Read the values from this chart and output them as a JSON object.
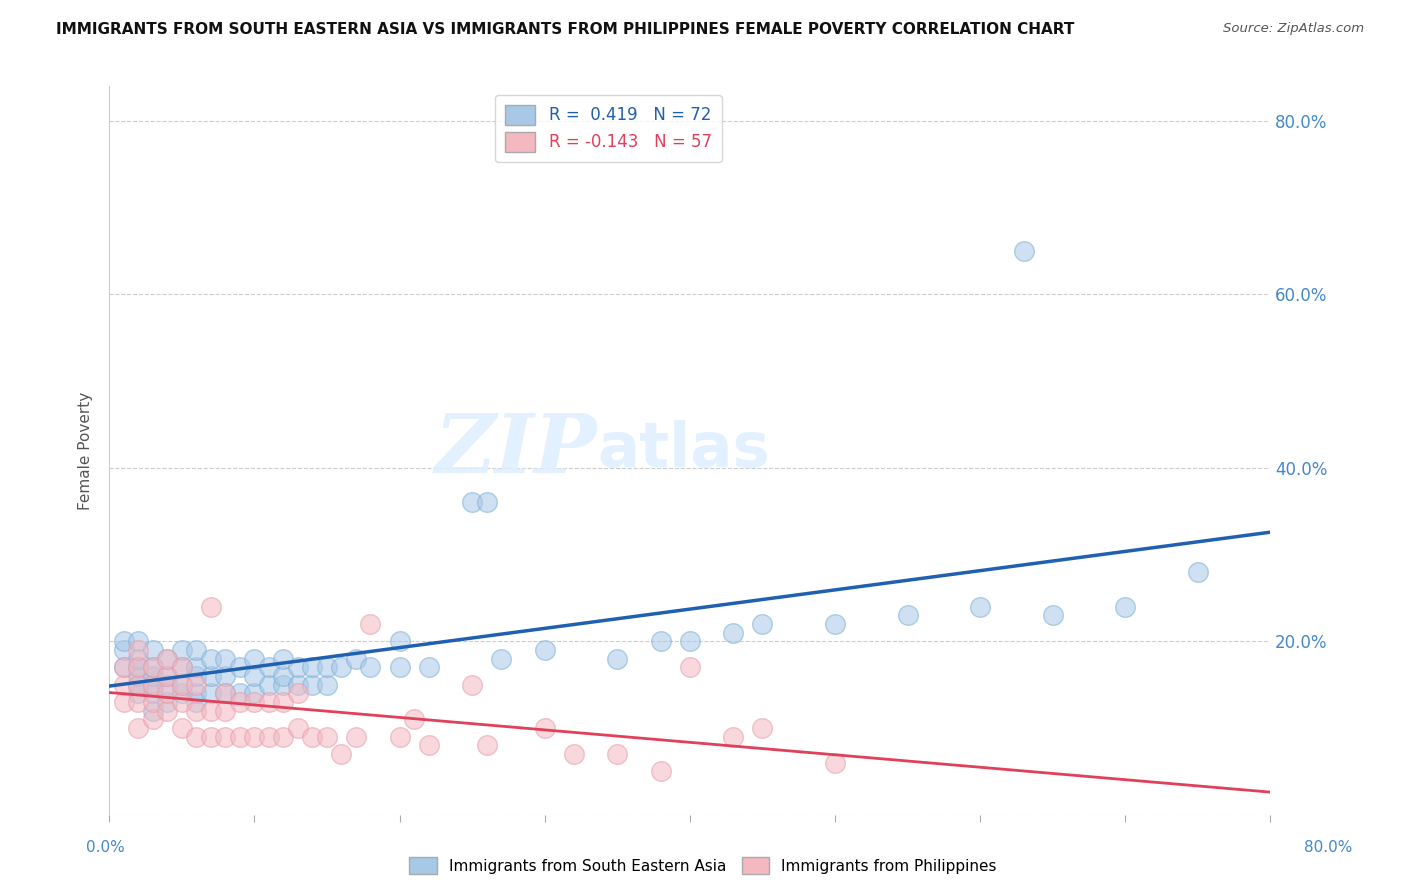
{
  "title": "IMMIGRANTS FROM SOUTH EASTERN ASIA VS IMMIGRANTS FROM PHILIPPINES FEMALE POVERTY CORRELATION CHART",
  "source": "Source: ZipAtlas.com",
  "ylabel": "Female Poverty",
  "r1": 0.419,
  "n1": 72,
  "r2": -0.143,
  "n2": 57,
  "color_sea": "#a8c8e8",
  "color_phil": "#f4b8c0",
  "color_sea_edge": "#7bafd4",
  "color_phil_edge": "#e89aaa",
  "color_sea_line": "#2060b0",
  "color_phil_line": "#e0405a",
  "legend_sea": "Immigrants from South Eastern Asia",
  "legend_phil": "Immigrants from Philippines",
  "watermark_zip": "ZIP",
  "watermark_atlas": "atlas",
  "xlim": [
    0.0,
    0.8
  ],
  "ylim": [
    0.0,
    0.84
  ],
  "yticks": [
    0.0,
    0.2,
    0.4,
    0.6,
    0.8
  ],
  "ytick_labels": [
    "",
    "20.0%",
    "40.0%",
    "60.0%",
    "80.0%"
  ],
  "sea_x": [
    0.01,
    0.01,
    0.01,
    0.02,
    0.02,
    0.02,
    0.02,
    0.02,
    0.02,
    0.03,
    0.03,
    0.03,
    0.03,
    0.03,
    0.03,
    0.04,
    0.04,
    0.04,
    0.04,
    0.05,
    0.05,
    0.05,
    0.05,
    0.06,
    0.06,
    0.06,
    0.06,
    0.06,
    0.07,
    0.07,
    0.07,
    0.08,
    0.08,
    0.08,
    0.09,
    0.09,
    0.1,
    0.1,
    0.1,
    0.11,
    0.11,
    0.12,
    0.12,
    0.12,
    0.13,
    0.13,
    0.14,
    0.14,
    0.15,
    0.15,
    0.16,
    0.17,
    0.18,
    0.2,
    0.2,
    0.22,
    0.25,
    0.26,
    0.27,
    0.3,
    0.35,
    0.38,
    0.4,
    0.43,
    0.45,
    0.5,
    0.55,
    0.6,
    0.63,
    0.65,
    0.7,
    0.75
  ],
  "sea_y": [
    0.17,
    0.19,
    0.2,
    0.14,
    0.15,
    0.16,
    0.17,
    0.18,
    0.2,
    0.12,
    0.14,
    0.15,
    0.16,
    0.17,
    0.19,
    0.13,
    0.15,
    0.16,
    0.18,
    0.14,
    0.15,
    0.17,
    0.19,
    0.13,
    0.14,
    0.16,
    0.17,
    0.19,
    0.14,
    0.16,
    0.18,
    0.14,
    0.16,
    0.18,
    0.14,
    0.17,
    0.14,
    0.16,
    0.18,
    0.15,
    0.17,
    0.15,
    0.16,
    0.18,
    0.15,
    0.17,
    0.15,
    0.17,
    0.15,
    0.17,
    0.17,
    0.18,
    0.17,
    0.17,
    0.2,
    0.17,
    0.36,
    0.36,
    0.18,
    0.19,
    0.18,
    0.2,
    0.2,
    0.21,
    0.22,
    0.22,
    0.23,
    0.24,
    0.65,
    0.23,
    0.24,
    0.28
  ],
  "phil_x": [
    0.01,
    0.01,
    0.01,
    0.02,
    0.02,
    0.02,
    0.02,
    0.02,
    0.03,
    0.03,
    0.03,
    0.03,
    0.04,
    0.04,
    0.04,
    0.04,
    0.05,
    0.05,
    0.05,
    0.05,
    0.06,
    0.06,
    0.06,
    0.07,
    0.07,
    0.07,
    0.08,
    0.08,
    0.08,
    0.09,
    0.09,
    0.1,
    0.1,
    0.11,
    0.11,
    0.12,
    0.12,
    0.13,
    0.13,
    0.14,
    0.15,
    0.16,
    0.17,
    0.18,
    0.2,
    0.21,
    0.22,
    0.25,
    0.26,
    0.3,
    0.32,
    0.35,
    0.38,
    0.4,
    0.43,
    0.45,
    0.5
  ],
  "phil_y": [
    0.13,
    0.15,
    0.17,
    0.1,
    0.13,
    0.15,
    0.17,
    0.19,
    0.11,
    0.13,
    0.15,
    0.17,
    0.12,
    0.14,
    0.16,
    0.18,
    0.1,
    0.13,
    0.15,
    0.17,
    0.09,
    0.12,
    0.15,
    0.09,
    0.12,
    0.24,
    0.09,
    0.12,
    0.14,
    0.09,
    0.13,
    0.09,
    0.13,
    0.09,
    0.13,
    0.09,
    0.13,
    0.1,
    0.14,
    0.09,
    0.09,
    0.07,
    0.09,
    0.22,
    0.09,
    0.11,
    0.08,
    0.15,
    0.08,
    0.1,
    0.07,
    0.07,
    0.05,
    0.17,
    0.09,
    0.1,
    0.06
  ],
  "marker_size": 200
}
